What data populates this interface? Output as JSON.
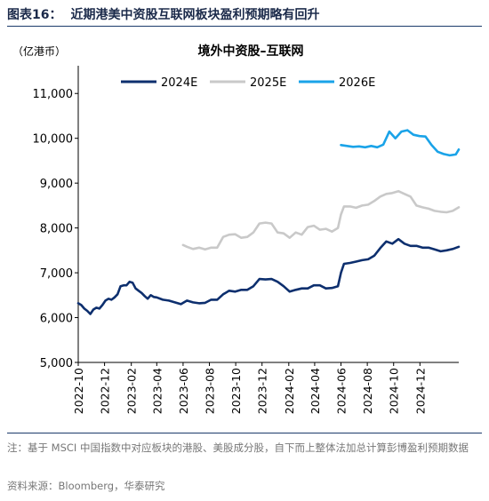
{
  "figure": {
    "number": "图表16：",
    "title": "近期港美中资股互联网板块盈利预期略有回升",
    "note": "注：基于 MSCI 中国指数中对应板块的港股、美股成分股，自下而上整体法加总计算彭博盈利预期数据",
    "source": "资料来源：Bloomberg，华泰研究"
  },
  "chart_data": {
    "type": "line",
    "title": "境外中资股–互联网",
    "unit": "（亿港币）",
    "xlabel": "",
    "ylabel": "",
    "ylim": [
      5000,
      11500
    ],
    "yticks": [
      "5,000",
      "6,000",
      "7,000",
      "8,000",
      "9,000",
      "10,000",
      "11,000"
    ],
    "ytick_values": [
      5000,
      6000,
      7000,
      8000,
      9000,
      10000,
      11000
    ],
    "xlim": [
      "2022-10",
      "2025-03"
    ],
    "xticks": [
      "2022-10",
      "2022-12",
      "2023-02",
      "2023-04",
      "2023-06",
      "2023-08",
      "2023-10",
      "2023-12",
      "2024-02",
      "2024-04",
      "2024-06",
      "2024-08",
      "2024-10",
      "2024-12"
    ],
    "grid": false,
    "legend": "top-center",
    "series": [
      {
        "name": "2024E",
        "color": "#0d2f6e",
        "x": [
          "2022-10-01",
          "2022-10-08",
          "2022-10-15",
          "2022-10-22",
          "2022-10-29",
          "2022-11-05",
          "2022-11-12",
          "2022-11-19",
          "2022-11-26",
          "2022-12-03",
          "2022-12-10",
          "2022-12-17",
          "2022-12-24",
          "2022-12-31",
          "2023-01-07",
          "2023-01-14",
          "2023-01-21",
          "2023-01-28",
          "2023-02-04",
          "2023-02-11",
          "2023-02-18",
          "2023-02-25",
          "2023-03-04",
          "2023-03-11",
          "2023-03-18",
          "2023-03-25",
          "2023-04-01",
          "2023-04-15",
          "2023-04-29",
          "2023-05-13",
          "2023-05-27",
          "2023-06-10",
          "2023-06-24",
          "2023-07-08",
          "2023-07-22",
          "2023-08-05",
          "2023-08-19",
          "2023-09-02",
          "2023-09-16",
          "2023-09-30",
          "2023-10-14",
          "2023-10-28",
          "2023-11-11",
          "2023-11-25",
          "2023-12-09",
          "2023-12-23",
          "2024-01-06",
          "2024-01-20",
          "2024-02-03",
          "2024-02-17",
          "2024-03-02",
          "2024-03-16",
          "2024-03-30",
          "2024-04-13",
          "2024-04-27",
          "2024-05-11",
          "2024-05-25",
          "2024-06-01",
          "2024-06-08",
          "2024-06-22",
          "2024-07-06",
          "2024-07-20",
          "2024-08-03",
          "2024-08-17",
          "2024-08-31",
          "2024-09-14",
          "2024-09-28",
          "2024-10-12",
          "2024-10-26",
          "2024-11-09",
          "2024-11-23",
          "2024-12-07",
          "2024-12-21",
          "2025-01-04",
          "2025-01-18",
          "2025-02-01",
          "2025-02-15",
          "2025-03-01"
        ],
        "y": [
          6320,
          6280,
          6200,
          6150,
          6080,
          6180,
          6220,
          6200,
          6280,
          6380,
          6420,
          6400,
          6450,
          6520,
          6700,
          6720,
          6720,
          6800,
          6780,
          6650,
          6600,
          6550,
          6480,
          6420,
          6500,
          6460,
          6450,
          6400,
          6380,
          6340,
          6300,
          6380,
          6340,
          6320,
          6330,
          6400,
          6400,
          6520,
          6600,
          6580,
          6620,
          6620,
          6700,
          6860,
          6850,
          6860,
          6800,
          6700,
          6580,
          6620,
          6650,
          6650,
          6720,
          6720,
          6650,
          6660,
          6700,
          7000,
          7200,
          7220,
          7250,
          7280,
          7300,
          7380,
          7550,
          7700,
          7650,
          7750,
          7650,
          7600,
          7600,
          7560,
          7560,
          7520,
          7480,
          7500,
          7530,
          7580
        ]
      },
      {
        "name": "2025E",
        "color": "#c9c9c9",
        "x": [
          "2023-06-01",
          "2023-06-10",
          "2023-06-24",
          "2023-07-08",
          "2023-07-22",
          "2023-08-05",
          "2023-08-19",
          "2023-09-02",
          "2023-09-16",
          "2023-09-30",
          "2023-10-14",
          "2023-10-28",
          "2023-11-11",
          "2023-11-25",
          "2023-12-09",
          "2023-12-23",
          "2024-01-06",
          "2024-01-20",
          "2024-02-03",
          "2024-02-17",
          "2024-03-02",
          "2024-03-16",
          "2024-03-30",
          "2024-04-13",
          "2024-04-27",
          "2024-05-11",
          "2024-05-25",
          "2024-06-01",
          "2024-06-08",
          "2024-06-22",
          "2024-07-06",
          "2024-07-20",
          "2024-08-03",
          "2024-08-17",
          "2024-08-31",
          "2024-09-14",
          "2024-09-28",
          "2024-10-12",
          "2024-10-26",
          "2024-11-09",
          "2024-11-23",
          "2024-12-07",
          "2024-12-21",
          "2025-01-04",
          "2025-01-18",
          "2025-02-01",
          "2025-02-15",
          "2025-03-01"
        ],
        "y": [
          7620,
          7580,
          7530,
          7560,
          7520,
          7560,
          7560,
          7800,
          7850,
          7860,
          7780,
          7800,
          7900,
          8100,
          8120,
          8100,
          7900,
          7880,
          7780,
          7900,
          7850,
          8020,
          8050,
          7960,
          7980,
          7920,
          8000,
          8300,
          8480,
          8480,
          8450,
          8500,
          8520,
          8600,
          8700,
          8760,
          8780,
          8820,
          8760,
          8700,
          8500,
          8460,
          8430,
          8380,
          8360,
          8350,
          8380,
          8460
        ]
      },
      {
        "name": "2026E",
        "color": "#1aa3e8",
        "x": [
          "2024-06-01",
          "2024-06-15",
          "2024-06-29",
          "2024-07-13",
          "2024-07-27",
          "2024-08-10",
          "2024-08-24",
          "2024-09-07",
          "2024-09-21",
          "2024-10-05",
          "2024-10-19",
          "2024-11-02",
          "2024-11-16",
          "2024-11-30",
          "2024-12-14",
          "2024-12-28",
          "2025-01-11",
          "2025-01-25",
          "2025-02-08",
          "2025-02-22",
          "2025-03-01"
        ],
        "y": [
          9850,
          9830,
          9810,
          9820,
          9800,
          9830,
          9800,
          9860,
          10150,
          10000,
          10150,
          10180,
          10080,
          10050,
          10040,
          9850,
          9700,
          9650,
          9620,
          9640,
          9750
        ]
      }
    ]
  }
}
